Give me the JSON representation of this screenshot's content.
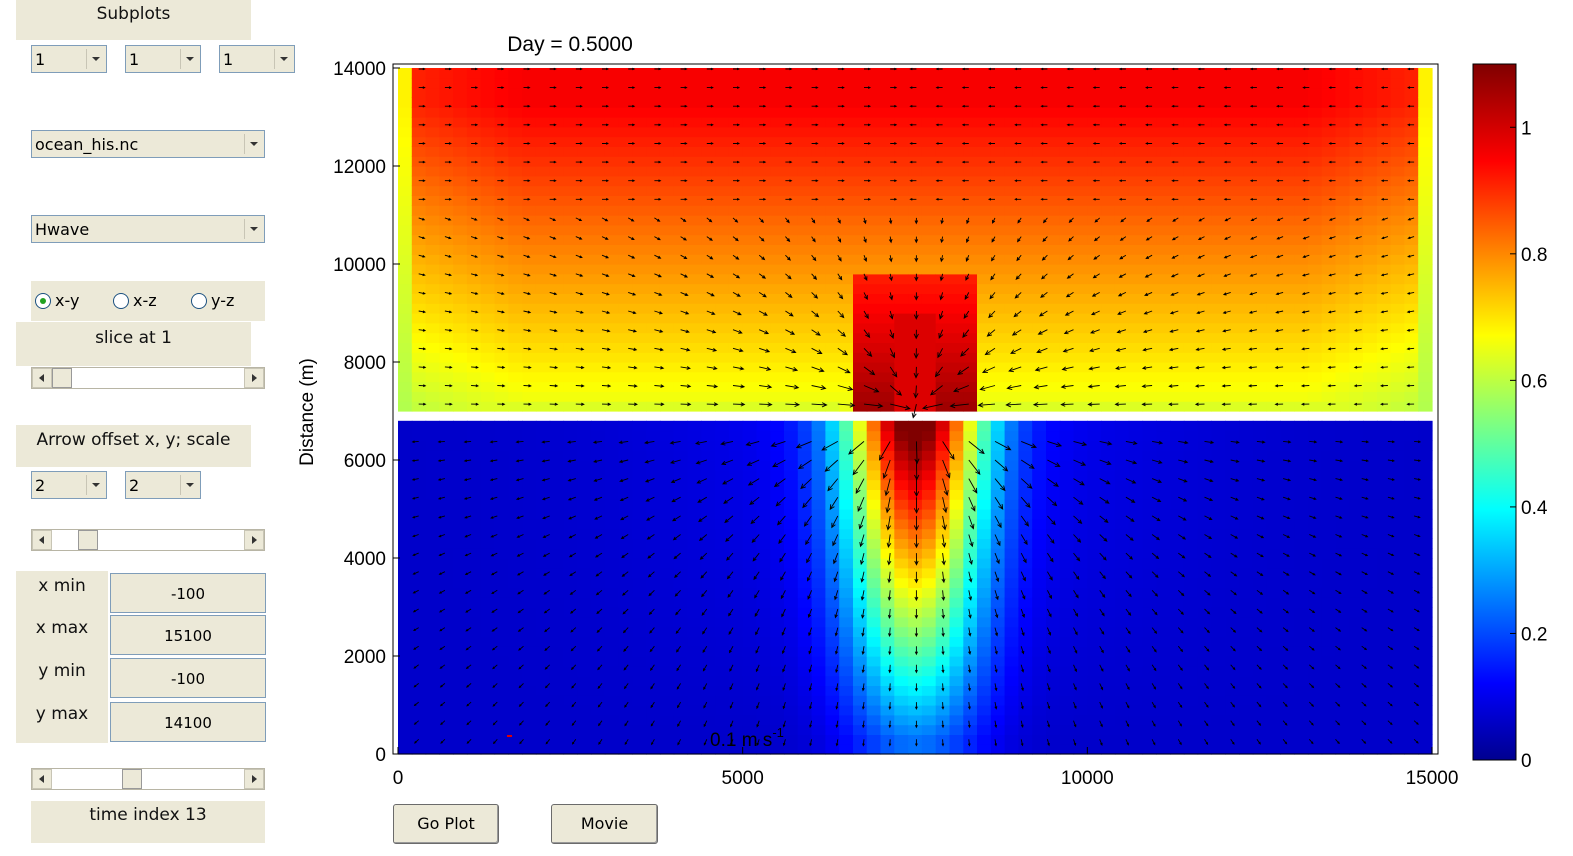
{
  "controls": {
    "subplots_label": "Subplots",
    "subplot_rows": "1",
    "subplot_cols": "1",
    "subplot_index": "1",
    "file_select": "ocean_his.nc",
    "variable_select": "Hwave",
    "slice_options": [
      "x-y",
      "x-z",
      "y-z"
    ],
    "slice_selected": "x-y",
    "slice_label": "slice at 1",
    "slice_slider_value": 0.0,
    "arrow_label": "Arrow offset x, y; scale",
    "arrow_offset_x": "2",
    "arrow_offset_y": "2",
    "arrow_scale_slider_value": 0.15,
    "limits": [
      {
        "label": "x min",
        "value": "-100"
      },
      {
        "label": "x max",
        "value": "15100"
      },
      {
        "label": "y min",
        "value": "-100"
      },
      {
        "label": "y max",
        "value": "14100"
      }
    ],
    "time_slider_value": 0.4,
    "time_label": "time index 13",
    "go_plot_label": "Go Plot",
    "movie_label": "Movie"
  },
  "chart_data": {
    "type": "heatmap",
    "title": "Day = 0.5000",
    "ylabel": "Distance (m)",
    "xlabel": "",
    "xlim": [
      0,
      15000
    ],
    "ylim": [
      0,
      14000
    ],
    "x_ticks": [
      "0",
      "5000",
      "10000",
      "15000"
    ],
    "y_ticks": [
      "0",
      "2000",
      "4000",
      "6000",
      "8000",
      "10000",
      "12000",
      "14000"
    ],
    "colorbar_ticks": [
      "0",
      "0.2",
      "0.4",
      "0.6",
      "0.8",
      "1"
    ],
    "colorbar_range": [
      0,
      1.1
    ],
    "colormap": "jet",
    "quiver_scale_label": "0.1 m s",
    "quiver_scale_exponent": "-1",
    "land_strip_y": [
      6800,
      7000
    ],
    "inlet_x": [
      6500,
      8500
    ]
  }
}
